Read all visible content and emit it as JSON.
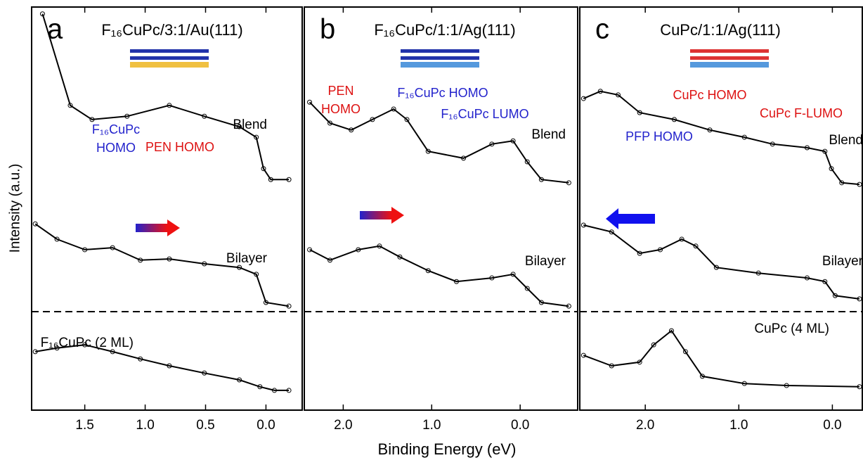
{
  "x_label": "Binding Energy (eV)",
  "y_label": "Intensity (a.u.)",
  "chart_data": [
    {
      "type": "line",
      "letter": "a",
      "title": "F₁₆CuPc/3:1/Au(111)",
      "xlim": [
        1.94,
        -0.3
      ],
      "xticks": [
        1.5,
        {
          "value": 1.0,
          "label": "1.0"
        },
        0.5,
        {
          "value": 0.0,
          "label": "0.0"
        }
      ],
      "ylim": [
        0,
        100
      ],
      "series": [
        {
          "name": "Blend",
          "color": "#000000",
          "x": [
            1.85,
            1.62,
            1.44,
            1.15,
            0.8,
            0.51,
            0.22,
            0.08,
            0.02,
            -0.04,
            -0.19
          ],
          "values": [
            98.3,
            75.6,
            72.1,
            72.9,
            75.6,
            72.9,
            70.3,
            67.7,
            59.9,
            57.2,
            57.2
          ]
        },
        {
          "name": "Bilayer",
          "color": "#000000",
          "x": [
            1.91,
            1.73,
            1.5,
            1.27,
            1.04,
            0.8,
            0.51,
            0.22,
            0.08,
            0.0,
            -0.19
          ],
          "values": [
            46.2,
            42.4,
            39.8,
            40.3,
            37.2,
            37.5,
            36.3,
            35.4,
            33.7,
            26.7,
            25.8
          ]
        },
        {
          "name": "F₁₆CuPc (2 ML)",
          "color": "#000000",
          "x": [
            1.91,
            1.73,
            1.5,
            1.27,
            1.04,
            0.8,
            0.51,
            0.22,
            0.05,
            -0.07,
            -0.19
          ],
          "values": [
            14.5,
            15.4,
            16.2,
            14.5,
            12.7,
            11.0,
            9.2,
            7.5,
            5.8,
            4.9,
            4.9
          ]
        }
      ],
      "annotations": [
        {
          "lines": [
            "F₁₆CuPc",
            "HOMO"
          ],
          "color": "#2222cc"
        },
        {
          "lines": [
            "PEN HOMO"
          ],
          "color": "#dd1111"
        }
      ]
    },
    {
      "type": "line",
      "letter": "b",
      "title": "F₁₆CuPc/1:1/Ag(111)",
      "xlim": [
        2.44,
        -0.65
      ],
      "xticks": [
        {
          "value": 2.0,
          "label": "2.0"
        },
        {
          "value": 1.0,
          "label": "1.0"
        },
        {
          "value": 0.0,
          "label": "0.0"
        }
      ],
      "ylim": [
        0,
        100
      ],
      "series": [
        {
          "name": "Blend",
          "color": "#000000",
          "x": [
            2.38,
            2.15,
            1.91,
            1.67,
            1.43,
            1.28,
            1.04,
            0.64,
            0.32,
            0.08,
            -0.08,
            -0.24,
            -0.55
          ],
          "values": [
            76.4,
            71.2,
            69.5,
            72.1,
            74.7,
            72.1,
            64.2,
            62.5,
            66.0,
            66.8,
            61.6,
            57.2,
            56.4
          ]
        },
        {
          "name": "Bilayer",
          "color": "#000000",
          "x": [
            2.38,
            2.15,
            1.83,
            1.59,
            1.36,
            1.04,
            0.72,
            0.32,
            0.08,
            -0.08,
            -0.24,
            -0.55
          ],
          "values": [
            39.8,
            37.2,
            39.8,
            40.7,
            38.0,
            34.6,
            31.9,
            32.8,
            33.7,
            30.2,
            26.7,
            25.8
          ]
        }
      ],
      "annotations": [
        {
          "lines": [
            "PEN",
            "HOMO"
          ],
          "color": "#dd1111"
        },
        {
          "lines": [
            "F₁₆CuPc HOMO"
          ],
          "color": "#2222cc"
        },
        {
          "lines": [
            "F₁₆CuPc LUMO"
          ],
          "color": "#2222cc"
        }
      ]
    },
    {
      "type": "line",
      "letter": "c",
      "title": "CuPc/1:1/Ag(111)",
      "xlim": [
        2.7,
        -0.32
      ],
      "xticks": [
        {
          "value": 2.0,
          "label": "2.0"
        },
        {
          "value": 1.0,
          "label": "1.0"
        },
        {
          "value": 0.0,
          "label": "0.0"
        }
      ],
      "ylim": [
        0,
        100
      ],
      "series": [
        {
          "name": "Blend",
          "color": "#000000",
          "x": [
            2.66,
            2.48,
            2.29,
            2.06,
            1.69,
            1.31,
            0.94,
            0.64,
            0.27,
            0.08,
            0.01,
            -0.1,
            -0.29
          ],
          "values": [
            77.3,
            79.1,
            78.2,
            73.8,
            72.1,
            69.5,
            67.7,
            66.0,
            65.1,
            64.2,
            59.9,
            56.4,
            56.0
          ]
        },
        {
          "name": "Bilayer",
          "color": "#000000",
          "x": [
            2.66,
            2.36,
            2.06,
            1.84,
            1.61,
            1.46,
            1.24,
            0.79,
            0.27,
            0.08,
            -0.03,
            -0.29
          ],
          "values": [
            45.9,
            44.2,
            38.9,
            39.8,
            42.4,
            40.7,
            35.4,
            34.0,
            32.8,
            31.9,
            28.4,
            27.6
          ]
        },
        {
          "name": "CuPc (4 ML)",
          "color": "#000000",
          "x": [
            2.66,
            2.36,
            2.06,
            1.91,
            1.72,
            1.57,
            1.39,
            0.94,
            0.49,
            -0.29
          ],
          "values": [
            13.6,
            11.0,
            11.9,
            16.2,
            19.7,
            14.5,
            8.4,
            6.6,
            6.1,
            5.8
          ]
        }
      ],
      "annotations": [
        {
          "lines": [
            "CuPc HOMO"
          ],
          "color": "#dd1111"
        },
        {
          "lines": [
            "CuPc F-LUMO"
          ],
          "color": "#dd1111"
        },
        {
          "lines": [
            "PFP HOMO"
          ],
          "color": "#2222cc"
        }
      ]
    }
  ]
}
